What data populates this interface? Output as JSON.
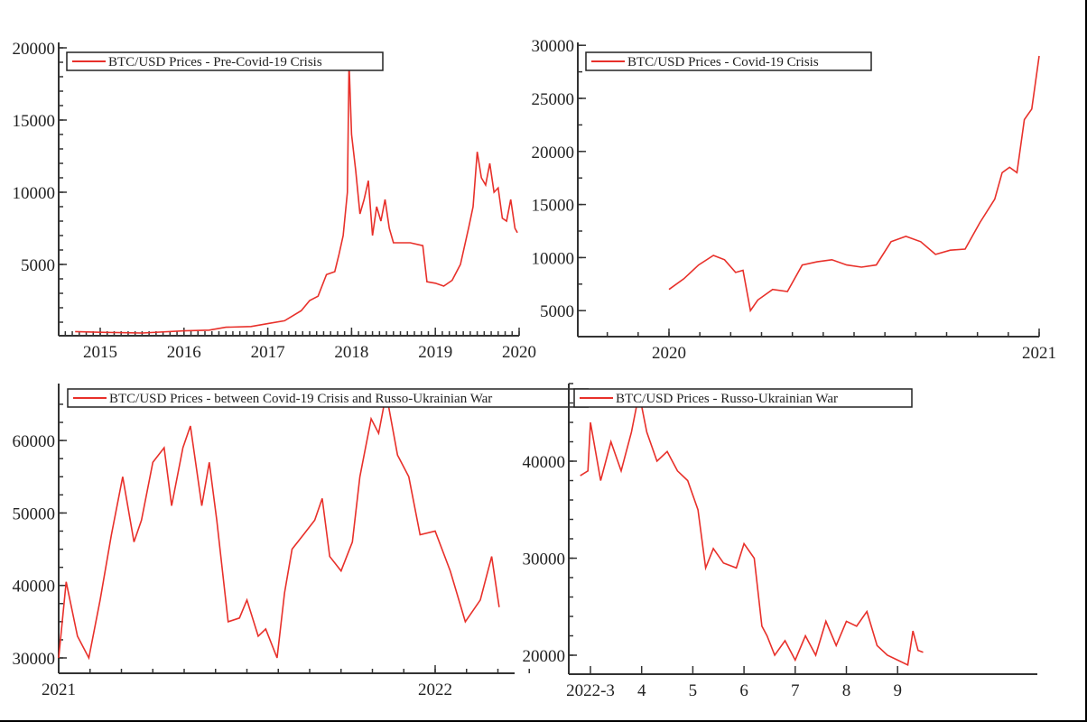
{
  "colors": {
    "line": "#e8302a",
    "axis": "#333333",
    "text": "#222222"
  },
  "chart_data": [
    {
      "type": "line",
      "legend": "BTC/USD Prices - Pre-Covid-19 Crisis",
      "xlabel": "",
      "ylabel": "",
      "x_ticks": [
        "2015",
        "2016",
        "2017",
        "2018",
        "2019",
        "2020"
      ],
      "y_ticks": [
        "5000",
        "10000",
        "15000",
        "20000"
      ],
      "ylim": [
        0,
        20000
      ],
      "xlim": [
        2014.5,
        2020.0
      ],
      "grid": false,
      "legend_position": "top-left",
      "x": [
        2014.7,
        2015.0,
        2015.5,
        2016.0,
        2016.3,
        2016.5,
        2016.8,
        2017.0,
        2017.2,
        2017.4,
        2017.5,
        2017.6,
        2017.7,
        2017.8,
        2017.85,
        2017.9,
        2017.95,
        2017.97,
        2018.0,
        2018.05,
        2018.1,
        2018.15,
        2018.2,
        2018.25,
        2018.3,
        2018.35,
        2018.4,
        2018.45,
        2018.5,
        2018.6,
        2018.7,
        2018.85,
        2018.9,
        2019.0,
        2019.1,
        2019.2,
        2019.3,
        2019.4,
        2019.45,
        2019.5,
        2019.55,
        2019.6,
        2019.65,
        2019.7,
        2019.75,
        2019.8,
        2019.85,
        2019.9,
        2019.95,
        2019.98
      ],
      "values": [
        350,
        300,
        250,
        400,
        450,
        650,
        700,
        900,
        1100,
        1800,
        2500,
        2800,
        4300,
        4500,
        5700,
        7000,
        10000,
        19000,
        14000,
        11500,
        8500,
        9500,
        10800,
        7000,
        9000,
        8000,
        9500,
        7500,
        6500,
        6500,
        6500,
        6300,
        3800,
        3700,
        3500,
        3900,
        5000,
        7600,
        9000,
        12800,
        11000,
        10500,
        12000,
        10000,
        10300,
        8200,
        8000,
        9500,
        7500,
        7200
      ]
    },
    {
      "type": "line",
      "legend": "BTC/USD Prices - Covid-19 Crisis",
      "xlabel": "",
      "ylabel": "",
      "x_ticks": [
        "2020",
        "2021"
      ],
      "y_ticks": [
        "5000",
        "10000",
        "15000",
        "20000",
        "25000",
        "30000"
      ],
      "ylim": [
        2500,
        30000
      ],
      "xlim": [
        2019.75,
        2021.0
      ],
      "grid": false,
      "legend_position": "top-left",
      "x": [
        2020.0,
        2020.04,
        2020.08,
        2020.12,
        2020.15,
        2020.18,
        2020.2,
        2020.22,
        2020.24,
        2020.28,
        2020.32,
        2020.36,
        2020.4,
        2020.44,
        2020.48,
        2020.52,
        2020.56,
        2020.6,
        2020.64,
        2020.68,
        2020.72,
        2020.76,
        2020.8,
        2020.84,
        2020.88,
        2020.9,
        2020.92,
        2020.94,
        2020.96,
        2020.98,
        2021.0
      ],
      "values": [
        7000,
        8000,
        9300,
        10200,
        9800,
        8600,
        8800,
        5000,
        6000,
        7000,
        6800,
        9300,
        9600,
        9800,
        9300,
        9100,
        9300,
        11500,
        12000,
        11500,
        10300,
        10700,
        10800,
        13300,
        15500,
        18000,
        18500,
        18000,
        23000,
        24000,
        29000
      ]
    },
    {
      "type": "line",
      "legend": "BTC/USD Prices - between Covid-19 Crisis and Russo-Ukrainian War",
      "xlabel": "",
      "ylabel": "",
      "x_ticks": [
        "2021",
        "2022"
      ],
      "y_ticks": [
        "30000",
        "40000",
        "50000",
        "60000"
      ],
      "ylim": [
        28000,
        67000
      ],
      "xlim": [
        2021.0,
        2022.25
      ],
      "grid": false,
      "legend_position": "top-left",
      "x": [
        2021.0,
        2021.02,
        2021.05,
        2021.08,
        2021.11,
        2021.14,
        2021.17,
        2021.2,
        2021.22,
        2021.25,
        2021.28,
        2021.3,
        2021.33,
        2021.35,
        2021.38,
        2021.4,
        2021.42,
        2021.45,
        2021.48,
        2021.5,
        2021.53,
        2021.55,
        2021.58,
        2021.6,
        2021.62,
        2021.65,
        2021.68,
        2021.7,
        2021.72,
        2021.75,
        2021.78,
        2021.8,
        2021.83,
        2021.85,
        2021.87,
        2021.9,
        2021.93,
        2021.96,
        2022.0,
        2022.04,
        2022.08,
        2022.12,
        2022.15,
        2022.17
      ],
      "values": [
        30000,
        40500,
        33000,
        30000,
        38000,
        47000,
        55000,
        46000,
        49000,
        57000,
        59000,
        51000,
        59000,
        62000,
        51000,
        57000,
        49000,
        35000,
        35500,
        38000,
        33000,
        34000,
        30000,
        39000,
        45000,
        47000,
        49000,
        52000,
        44000,
        42000,
        46000,
        55000,
        63000,
        61000,
        66500,
        58000,
        55000,
        47000,
        47500,
        42000,
        35000,
        38000,
        44000,
        37000
      ]
    },
    {
      "type": "line",
      "legend": "BTC/USD Prices - Russo-Ukrainian War",
      "xlabel": "",
      "ylabel": "",
      "x_ticks": [
        "2022-3",
        "4",
        "5",
        "6",
        "7",
        "8",
        "9"
      ],
      "y_ticks": [
        "20000",
        "30000",
        "40000"
      ],
      "ylim": [
        18000,
        48000
      ],
      "xlim": [
        2.6,
        10.3
      ],
      "grid": false,
      "legend_position": "top-left",
      "x": [
        2.8,
        2.95,
        3.0,
        3.2,
        3.4,
        3.6,
        3.8,
        3.95,
        4.1,
        4.3,
        4.5,
        4.7,
        4.9,
        5.1,
        5.25,
        5.4,
        5.6,
        5.85,
        6.0,
        6.2,
        6.35,
        6.45,
        6.6,
        6.8,
        7.0,
        7.2,
        7.4,
        7.6,
        7.8,
        8.0,
        8.2,
        8.4,
        8.6,
        8.8,
        9.0,
        9.2,
        9.3,
        9.4,
        9.5
      ],
      "values": [
        38500,
        39000,
        44000,
        38000,
        42000,
        39000,
        43000,
        47000,
        43000,
        40000,
        41000,
        39000,
        38000,
        35000,
        29000,
        31000,
        29500,
        29000,
        31500,
        30000,
        23000,
        22000,
        20000,
        21500,
        19500,
        22000,
        20000,
        23500,
        21000,
        23500,
        23000,
        24500,
        21000,
        20000,
        19500,
        19000,
        22500,
        20500,
        20300
      ]
    }
  ]
}
